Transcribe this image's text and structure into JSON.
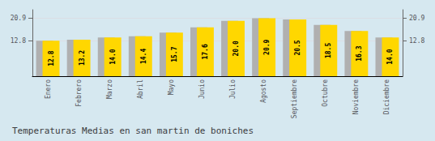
{
  "chart_data": {
    "type": "bar",
    "title": "Temperaturas Medias en san martin de boniches",
    "categories": [
      "Enero",
      "Febrero",
      "Marzo",
      "Abril",
      "Mayo",
      "Junio",
      "Julio",
      "Agosto",
      "Septiembre",
      "Octubre",
      "Noviembre",
      "Diciembre"
    ],
    "series": [
      {
        "color": "#B0B0B0",
        "values": [
          12.8,
          13.2,
          14.0,
          14.4,
          15.7,
          17.6,
          20.0,
          20.9,
          20.5,
          18.5,
          16.3,
          14.0
        ]
      },
      {
        "color": "#FFD700",
        "values": [
          12.8,
          13.2,
          14.0,
          14.4,
          15.7,
          17.6,
          20.0,
          20.9,
          20.5,
          18.5,
          16.3,
          14.0
        ],
        "value_labels": [
          "12.8",
          "13.2",
          "14.0",
          "14.4",
          "15.7",
          "17.6",
          "20.0",
          "20.9",
          "20.5",
          "18.5",
          "16.3",
          "14.0"
        ]
      }
    ],
    "ylim": [
      0,
      24.0
    ],
    "yticks": [
      12.8,
      20.9
    ],
    "y2lim": [
      0,
      24.0
    ],
    "y2ticks": [
      12.8,
      20.9
    ],
    "grid": true,
    "data_labels": true
  }
}
